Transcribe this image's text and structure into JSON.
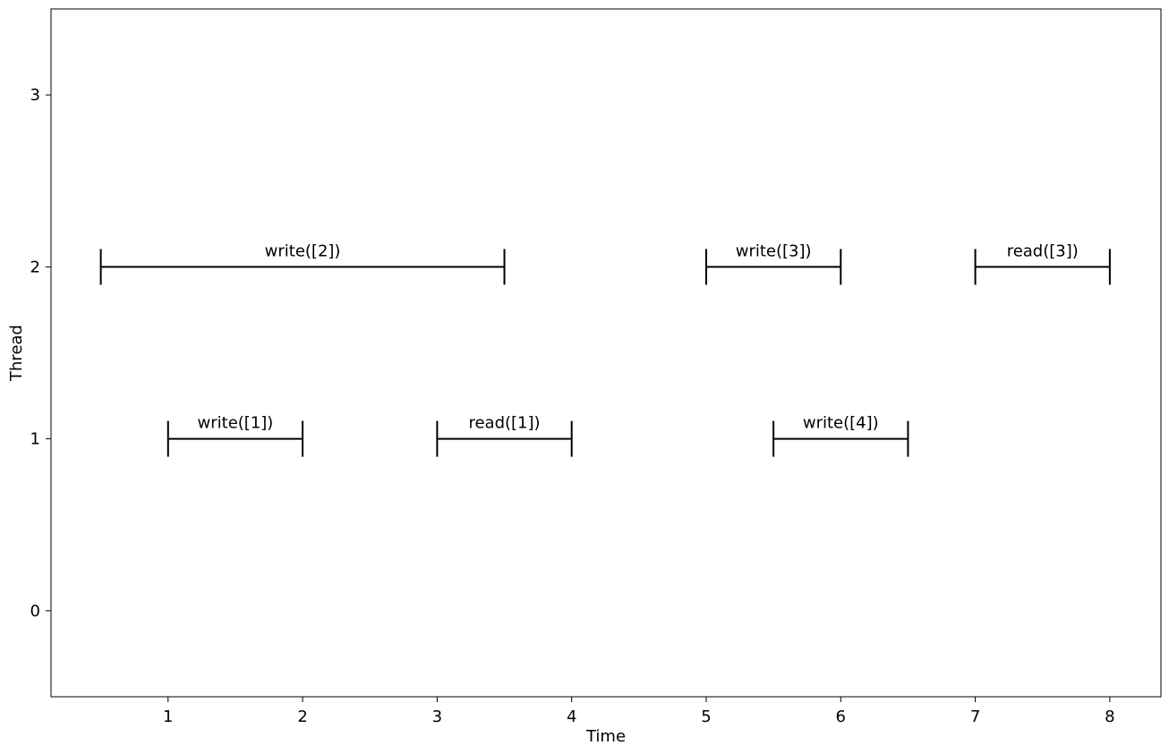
{
  "chart_data": {
    "type": "interval",
    "title": "",
    "xlabel": "Time",
    "ylabel": "Thread",
    "xlim": [
      0.13,
      8.38
    ],
    "ylim": [
      -0.5,
      3.5
    ],
    "xticks": [
      1,
      2,
      3,
      4,
      5,
      6,
      7,
      8
    ],
    "yticks": [
      0,
      1,
      2,
      3
    ],
    "grid": false,
    "color": "#000000",
    "intervals": [
      {
        "label": "write([2])",
        "thread": 2,
        "start": 0.5,
        "end": 3.5
      },
      {
        "label": "write([3])",
        "thread": 2,
        "start": 5,
        "end": 6
      },
      {
        "label": "read([3])",
        "thread": 2,
        "start": 7,
        "end": 8
      },
      {
        "label": "write([1])",
        "thread": 1,
        "start": 1,
        "end": 2
      },
      {
        "label": "read([1])",
        "thread": 1,
        "start": 3,
        "end": 4
      },
      {
        "label": "write([4])",
        "thread": 1,
        "start": 5.5,
        "end": 6.5
      }
    ]
  }
}
